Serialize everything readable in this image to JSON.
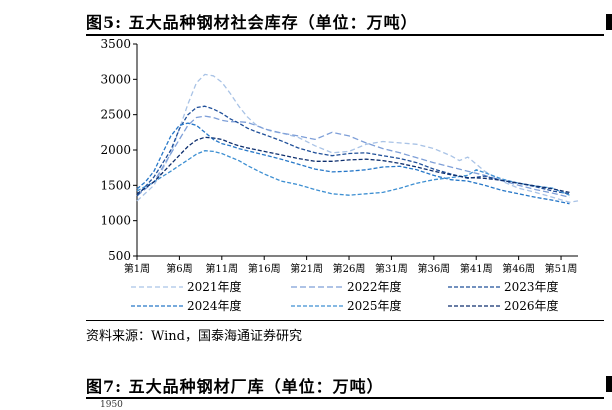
{
  "figure5_title": "图5:  五大品种钢材社会库存（单位：万吨）",
  "source": "资料来源：Wind，国泰海通证券研究",
  "figure7_title": "图7:  五大品种钢材厂库（单位：万吨）",
  "next_chart_top_tick": "1950",
  "chart_data": {
    "type": "line",
    "title": "",
    "xlabel": "",
    "ylabel": "",
    "ylim": [
      500,
      3500
    ],
    "yticks": [
      500,
      1000,
      1500,
      2000,
      2500,
      3000,
      3500
    ],
    "xlim": [
      1,
      53
    ],
    "xtick_labels": [
      "第1周",
      "第6周",
      "第11周",
      "第16周",
      "第21周",
      "第26周",
      "第31周",
      "第36周",
      "第41周",
      "第46周",
      "第51周"
    ],
    "xtick_weeks": [
      1,
      6,
      11,
      16,
      21,
      26,
      31,
      36,
      41,
      46,
      51
    ],
    "grid": false,
    "legend_placement": "bottom",
    "series": [
      {
        "name": "2021年度",
        "color": "#a9c3e6",
        "dash": "5,3",
        "x": [
          1,
          3,
          5,
          6,
          7,
          8,
          9,
          10,
          11,
          12,
          13,
          14,
          15,
          16,
          17,
          18,
          20,
          22,
          24,
          26,
          28,
          30,
          32,
          34,
          36,
          38,
          39,
          40,
          41,
          42,
          44,
          46,
          48,
          50,
          52,
          53
        ],
        "y": [
          1280,
          1500,
          1950,
          2300,
          2650,
          2950,
          3070,
          3050,
          2960,
          2800,
          2620,
          2470,
          2360,
          2300,
          2260,
          2240,
          2180,
          2060,
          1960,
          1980,
          2080,
          2120,
          2100,
          2080,
          2020,
          1920,
          1850,
          1900,
          1800,
          1700,
          1560,
          1460,
          1400,
          1330,
          1260,
          1280
        ]
      },
      {
        "name": "2022年度",
        "color": "#7e9fd8",
        "dash": "6,3",
        "x": [
          1,
          3,
          5,
          7,
          8,
          9,
          10,
          11,
          12,
          13,
          14,
          15,
          16,
          18,
          20,
          22,
          24,
          26,
          28,
          30,
          32,
          34,
          36,
          38,
          40,
          42,
          44,
          46,
          48,
          50,
          52
        ],
        "y": [
          1350,
          1550,
          1950,
          2350,
          2460,
          2480,
          2460,
          2420,
          2400,
          2400,
          2390,
          2350,
          2300,
          2240,
          2200,
          2150,
          2250,
          2200,
          2100,
          2020,
          1960,
          1890,
          1820,
          1760,
          1700,
          1640,
          1570,
          1500,
          1440,
          1390,
          1330
        ]
      },
      {
        "name": "2023年度",
        "color": "#1f4f99",
        "dash": "4,2",
        "x": [
          1,
          3,
          5,
          6,
          7,
          8,
          9,
          10,
          11,
          12,
          13,
          14,
          15,
          16,
          18,
          20,
          22,
          24,
          26,
          28,
          30,
          32,
          34,
          36,
          38,
          40,
          42,
          44,
          46,
          48,
          50,
          52
        ],
        "y": [
          1350,
          1620,
          2000,
          2300,
          2500,
          2600,
          2620,
          2580,
          2520,
          2440,
          2380,
          2310,
          2260,
          2220,
          2130,
          2030,
          1960,
          1920,
          1950,
          1960,
          1920,
          1880,
          1820,
          1730,
          1660,
          1600,
          1630,
          1570,
          1530,
          1480,
          1420,
          1380
        ]
      },
      {
        "name": "2024年度",
        "color": "#2677c8",
        "dash": "4,2",
        "x": [
          1,
          2,
          3,
          4,
          5,
          6,
          7,
          8,
          9,
          10,
          11,
          12,
          13,
          14,
          16,
          18,
          20,
          22,
          24,
          26,
          28,
          30,
          32,
          34,
          36,
          38,
          40,
          42,
          44,
          46,
          48,
          50,
          52
        ],
        "y": [
          1450,
          1550,
          1700,
          1950,
          2200,
          2350,
          2380,
          2350,
          2250,
          2150,
          2090,
          2060,
          2020,
          1990,
          1930,
          1870,
          1800,
          1730,
          1690,
          1700,
          1720,
          1760,
          1770,
          1720,
          1640,
          1580,
          1560,
          1500,
          1430,
          1380,
          1330,
          1290,
          1240
        ]
      },
      {
        "name": "2025年度",
        "color": "#3d8fd2",
        "dash": "4,2",
        "x": [
          1,
          3,
          5,
          6,
          7,
          8,
          9,
          10,
          11,
          12,
          13,
          14,
          16,
          18,
          20,
          22,
          24,
          26,
          28,
          30,
          32,
          34,
          36,
          38,
          40,
          41,
          42,
          44,
          46,
          48,
          50,
          52
        ],
        "y": [
          1420,
          1550,
          1700,
          1780,
          1860,
          1940,
          1990,
          1980,
          1950,
          1900,
          1850,
          1780,
          1660,
          1560,
          1510,
          1440,
          1380,
          1360,
          1380,
          1400,
          1460,
          1530,
          1580,
          1610,
          1640,
          1720,
          1680,
          1590,
          1530,
          1490,
          1460,
          1360
        ]
      },
      {
        "name": "2026年度",
        "color": "#0e2f6e",
        "dash": "4,2",
        "x": [
          1,
          3,
          5,
          7,
          8,
          9,
          10,
          11,
          12,
          13,
          14,
          16,
          18,
          20,
          22,
          24,
          26,
          28,
          30,
          32,
          34,
          36,
          38,
          40,
          42,
          44,
          46,
          48,
          50,
          52
        ],
        "y": [
          1380,
          1550,
          1800,
          2050,
          2140,
          2180,
          2170,
          2150,
          2100,
          2060,
          2030,
          1980,
          1930,
          1880,
          1840,
          1840,
          1860,
          1870,
          1850,
          1810,
          1760,
          1700,
          1650,
          1610,
          1600,
          1570,
          1530,
          1490,
          1450,
          1400
        ]
      }
    ]
  }
}
